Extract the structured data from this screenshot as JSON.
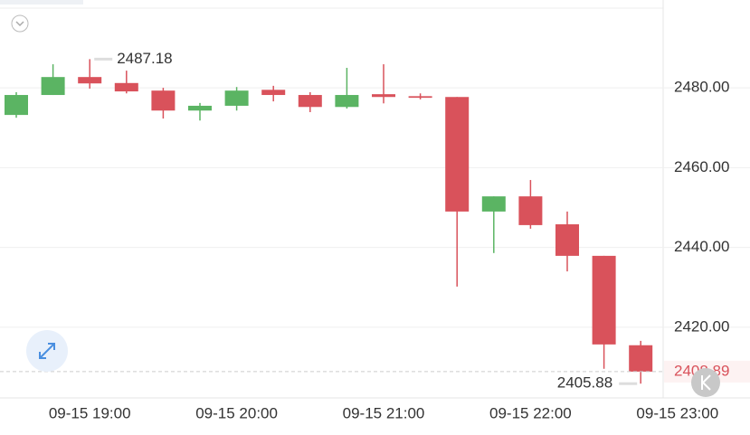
{
  "chart_data": {
    "type": "candlestick",
    "categories": [
      null,
      null,
      "09-15 19:00",
      null,
      null,
      null,
      "09-15 20:00",
      null,
      null,
      null,
      "09-15 21:00",
      null,
      null,
      null,
      "09-15 22:00",
      null,
      null,
      null,
      "09-15 23:00"
    ],
    "open": [
      2473.2,
      2478.2,
      2482.7,
      2481.2,
      2479.3,
      2474.3,
      2475.5,
      2479.5,
      2478.2,
      2475.2,
      2478.4,
      2477.9,
      2477.7,
      2449.0,
      2452.8,
      2445.8,
      2437.9,
      2415.5,
      null
    ],
    "high": [
      2478.9,
      2485.9,
      2487.18,
      2484.3,
      2480.0,
      2476.2,
      2480.2,
      2480.5,
      2478.9,
      2485.0,
      2485.9,
      2478.6,
      2477.7,
      2452.8,
      2456.9,
      2449.0,
      2437.9,
      2416.6,
      null
    ],
    "low": [
      2472.5,
      2478.2,
      2479.8,
      2478.6,
      2472.3,
      2471.8,
      2474.3,
      2476.6,
      2473.9,
      2474.8,
      2476.1,
      2477.1,
      2430.2,
      2438.6,
      2444.7,
      2434.0,
      2409.6,
      2405.88,
      null
    ],
    "close": [
      2478.2,
      2482.7,
      2481.1,
      2479.1,
      2474.3,
      2475.5,
      2479.3,
      2478.2,
      2475.2,
      2478.2,
      2477.7,
      2477.5,
      2449.0,
      2452.8,
      2445.6,
      2437.9,
      2415.7,
      2408.89,
      null
    ],
    "up_color": "#5bb463",
    "down_color": "#d9525b",
    "ylim": [
      2402.3,
      2502.0
    ],
    "yticks": [
      {
        "value": 2420,
        "label": "2420.00"
      },
      {
        "value": 2440,
        "label": "2440.00"
      },
      {
        "value": 2460,
        "label": "2460.00"
      },
      {
        "value": 2480,
        "label": "2480.00"
      }
    ],
    "grid": true
  }
}
